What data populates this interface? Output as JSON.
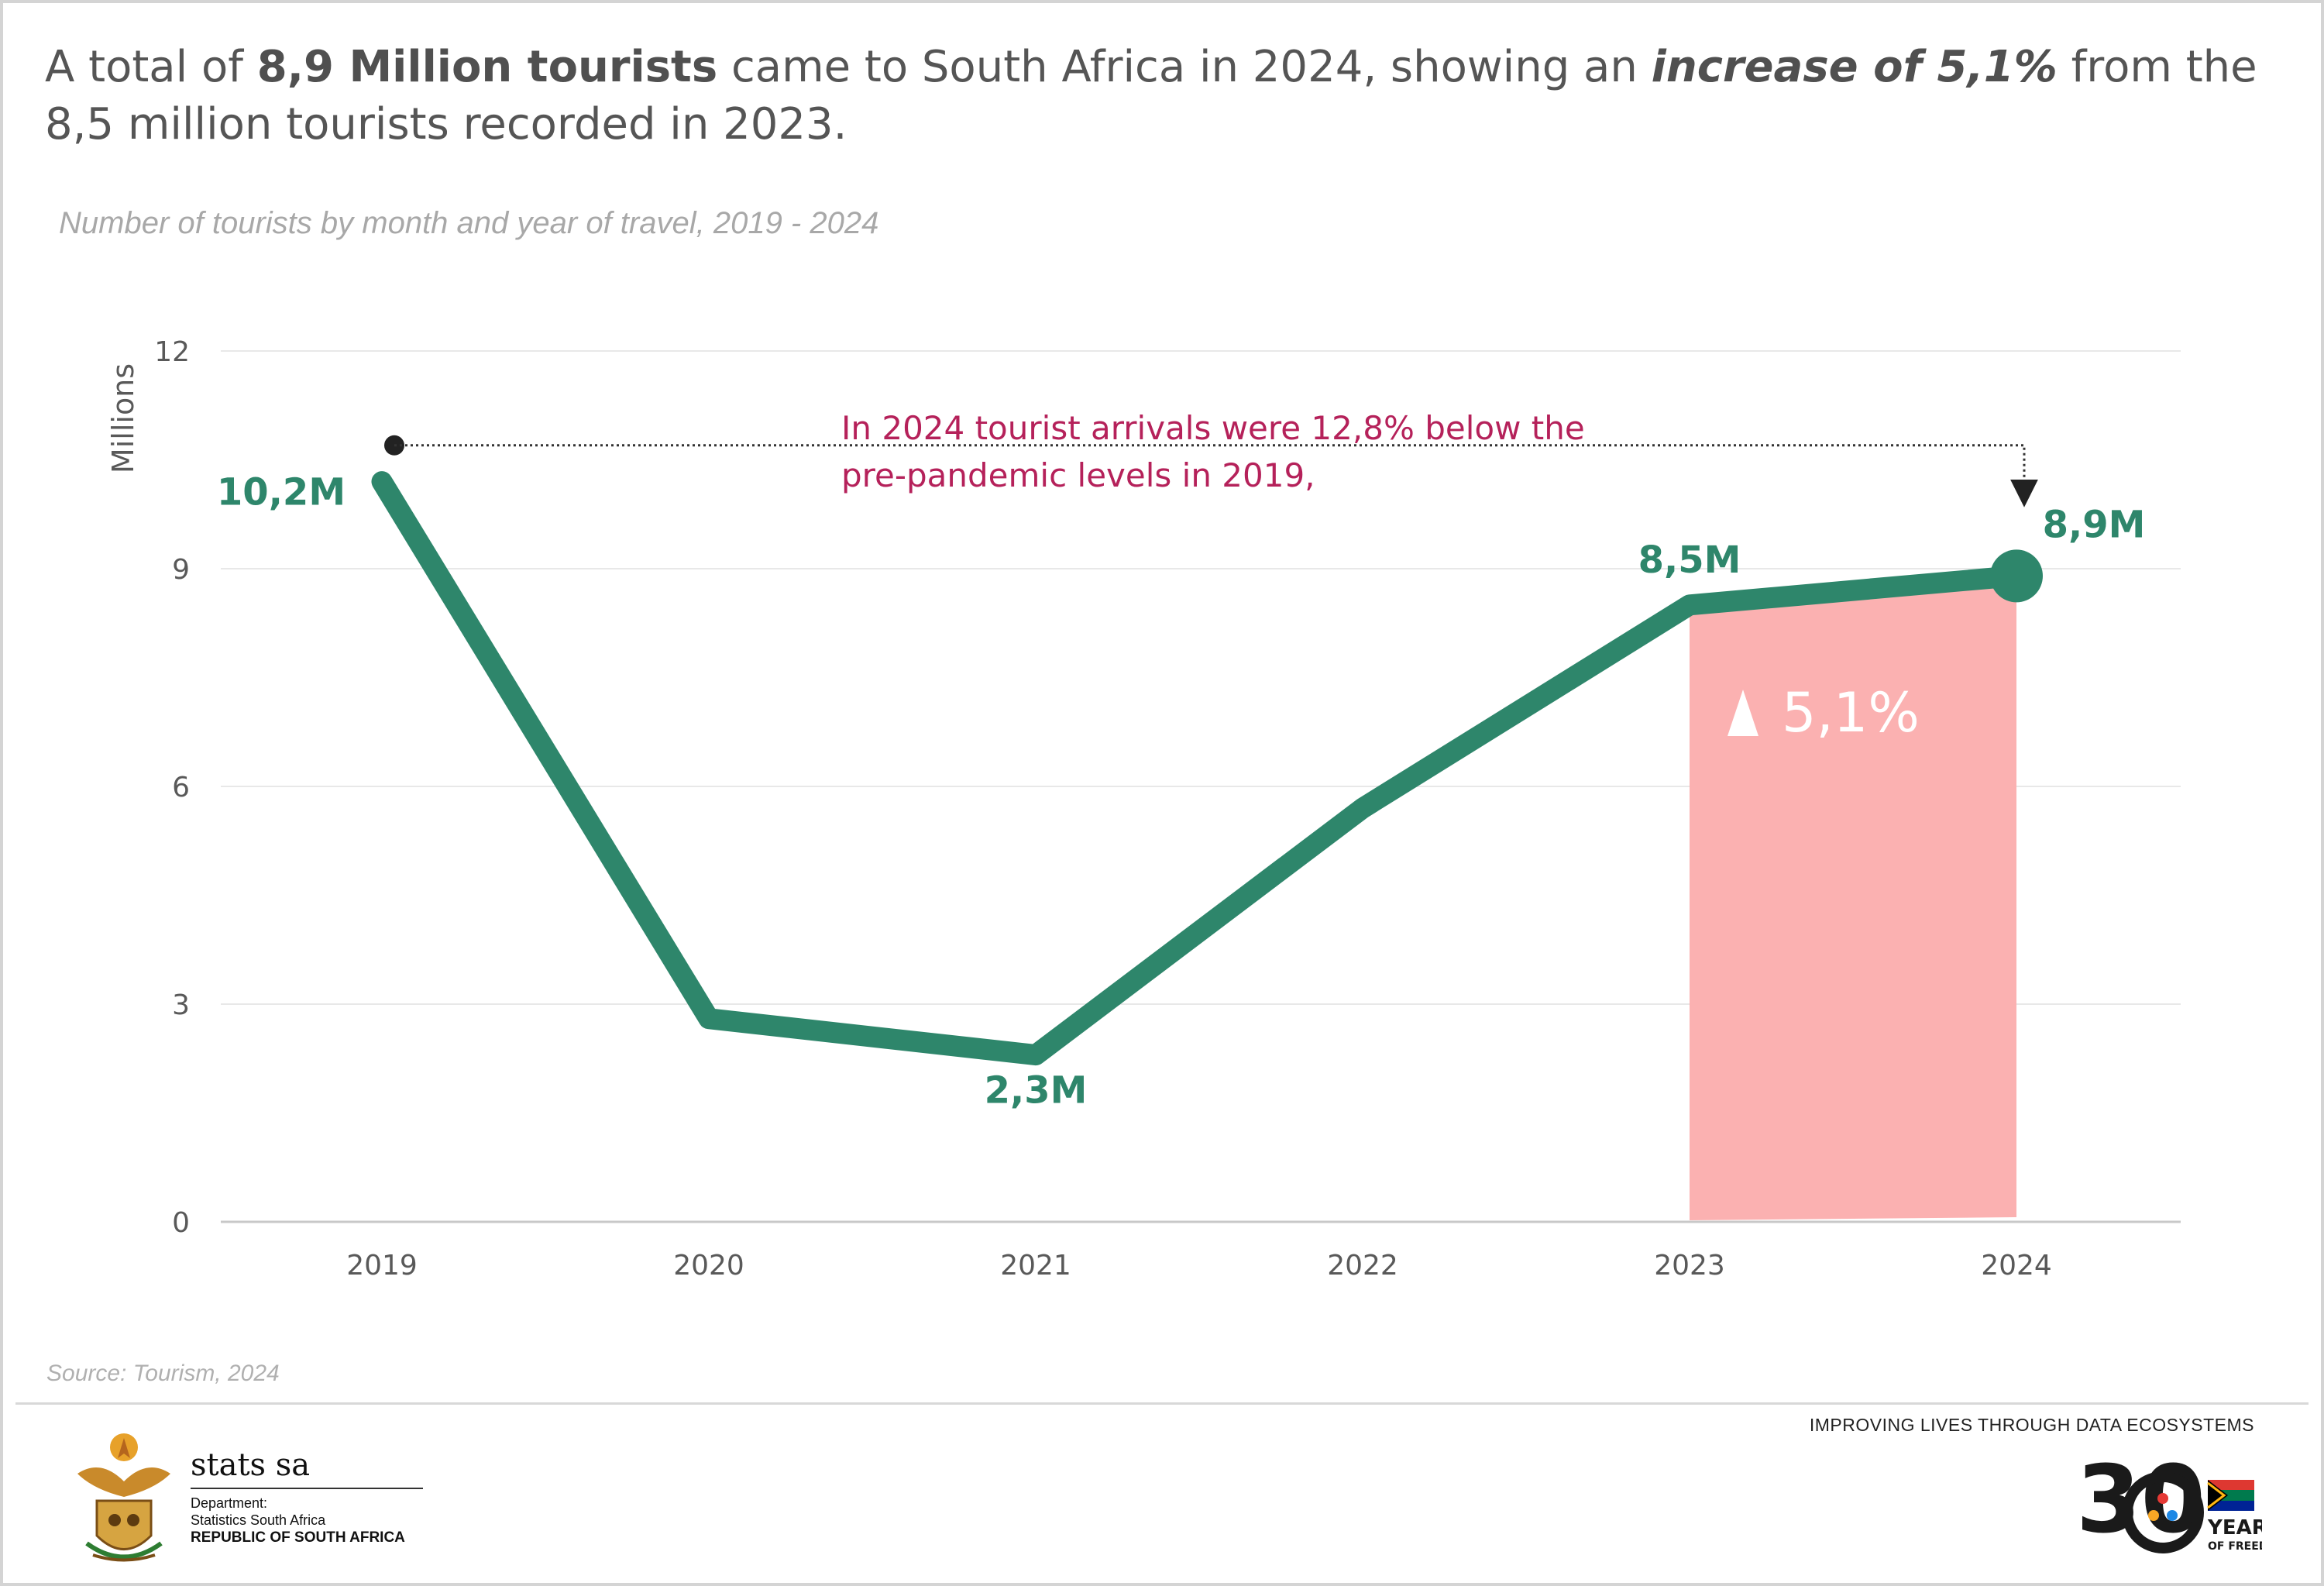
{
  "headline": {
    "part1": "A total of ",
    "bold1": "8,9 Million tourists",
    "part2": " came to South Africa in 2024, showing an ",
    "bold_italic": "increase of 5,1%",
    "part3": " from the 8,5 million tourists recorded in 2023."
  },
  "subtitle": "Number of tourists by month and year of travel, 2019 - 2024",
  "chart_data": {
    "type": "line",
    "title": "Number of tourists by month and year of travel, 2019 - 2024",
    "ylabel": "Millions",
    "ylim": [
      0,
      12
    ],
    "yticks": [
      0,
      3,
      6,
      9,
      12
    ],
    "grid": true,
    "x": [
      "2019",
      "2020",
      "2021",
      "2022",
      "2023",
      "2024"
    ],
    "series": [
      {
        "values": [
          10.2,
          2.8,
          2.3,
          5.7,
          8.5,
          8.9
        ]
      }
    ],
    "data_labels": [
      {
        "index": 0,
        "text": "10,2M"
      },
      {
        "index": 2,
        "text": "2,3M"
      },
      {
        "index": 4,
        "text": "8,5M"
      },
      {
        "index": 5,
        "text": "8,9M"
      }
    ],
    "annotation": {
      "line1": "In 2024 tourist arrivals were 12,8% below the",
      "line2": "pre-pandemic levels in 2019,",
      "from_year": "2019",
      "to_year": "2024",
      "level": 10.7
    },
    "highlight": {
      "from_year": "2023",
      "to_year": "2024",
      "label": "5,1%",
      "icon": "triangle-up-icon"
    },
    "colors": {
      "line": "#2e866b",
      "highlight": "#fbb1b1",
      "annotation": "#b5215a",
      "grid": "#e8e8e8",
      "axis_text": "#595959"
    }
  },
  "source": "Source:  Tourism, 2024",
  "footer": {
    "org_name": "stats sa",
    "org_line1": "Department:",
    "org_line2": "Statistics South Africa",
    "org_line3": "REPUBLIC OF SOUTH AFRICA",
    "tagline": "IMPROVING LIVES THROUGH DATA ECOSYSTEMS",
    "badge_number": "30",
    "badge_line1": "YEARS",
    "badge_line2": "OF FREEDOM",
    "coat_of_arms_icon": "coat-of-arms-icon",
    "freedom_logo_icon": "30-years-logo-icon"
  }
}
